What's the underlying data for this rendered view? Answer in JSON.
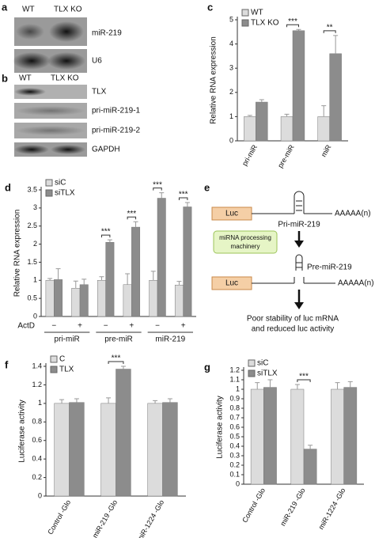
{
  "blot_a": {
    "panel": "a",
    "lanes": [
      "WT",
      "TLX KO"
    ],
    "rows": [
      "miR-219",
      "U6"
    ]
  },
  "blot_b": {
    "panel": "b",
    "lanes": [
      "WT",
      "TLX KO"
    ],
    "rows": [
      "TLX",
      "pri-miR-219-1",
      "pri-miR-219-2",
      "GAPDH"
    ]
  },
  "diagram": {
    "panel": "e",
    "luc": "Luc",
    "pri": "Pri-miR-219",
    "polya": "AAAAA(n)",
    "machinery": [
      "miRNA processing",
      "machinery"
    ],
    "pre": "Pre-miR-219",
    "luc2": "Luc",
    "polya2": "AAAAA(n)",
    "result": [
      "Poor stability of luc mRNA",
      "and reduced luc activity"
    ]
  },
  "chart_data": [
    {
      "type": "bar",
      "panel": "c",
      "ylabel": "Relative RNA expression",
      "categories": [
        "pri-miR",
        "pre-miR",
        "miR"
      ],
      "series": [
        {
          "name": "WT",
          "color": "#dcdcdc",
          "values": [
            1,
            1,
            1
          ],
          "errors": [
            0.05,
            0.1,
            0.45
          ]
        },
        {
          "name": "TLX KO",
          "color": "#8c8c8c",
          "values": [
            1.6,
            4.55,
            3.6
          ],
          "errors": [
            0.1,
            0.05,
            0.75
          ]
        }
      ],
      "significance": [
        null,
        "***",
        "**"
      ],
      "ylim": [
        0,
        5
      ],
      "yticks": [
        0,
        1,
        2,
        3,
        4,
        5
      ],
      "legend": "upper left"
    },
    {
      "type": "bar",
      "panel": "d",
      "ylabel": "Relative RNA expression",
      "categories": [
        "−",
        "+",
        "−",
        "+",
        "−",
        "+"
      ],
      "row_label": "ActD",
      "group_labels": [
        "pri-miR",
        "pre-miR",
        "miR-219"
      ],
      "series": [
        {
          "name": "siC",
          "color": "#dcdcdc",
          "values": [
            1.0,
            0.78,
            1.0,
            0.88,
            1.0,
            0.87
          ],
          "errors": [
            0.05,
            0.2,
            0.1,
            0.3,
            0.25,
            0.1
          ]
        },
        {
          "name": "siTLX",
          "color": "#8c8c8c",
          "values": [
            1.02,
            0.88,
            2.05,
            2.47,
            3.27,
            3.03
          ],
          "errors": [
            0.3,
            0.15,
            0.07,
            0.15,
            0.15,
            0.12
          ]
        }
      ],
      "significance": [
        null,
        null,
        "***",
        "***",
        "***",
        "***"
      ],
      "ylim": [
        0,
        3.5
      ],
      "yticks": [
        0,
        0.5,
        1,
        1.5,
        2,
        2.5,
        3,
        3.5
      ],
      "legend": "upper left"
    },
    {
      "type": "bar",
      "panel": "f",
      "ylabel": "Luciferase activity",
      "categories": [
        "Control -Glo",
        "miR-219 -Glo",
        "miR-1224 -Glo"
      ],
      "series": [
        {
          "name": "C",
          "color": "#dcdcdc",
          "values": [
            1,
            1,
            1
          ],
          "errors": [
            0.04,
            0.06,
            0.03
          ]
        },
        {
          "name": "TLX",
          "color": "#8c8c8c",
          "values": [
            1.01,
            1.37,
            1.01
          ],
          "errors": [
            0.04,
            0.03,
            0.04
          ]
        }
      ],
      "significance": [
        null,
        "***",
        null
      ],
      "ylim": [
        0,
        1.4
      ],
      "yticks": [
        0,
        0.2,
        0.4,
        0.6,
        0.8,
        1,
        1.2,
        1.4
      ],
      "legend": "upper left"
    },
    {
      "type": "bar",
      "panel": "g",
      "ylabel": "Luciferase activity",
      "categories": [
        "Control -Glo",
        "miR-219 -Glo",
        "miR-1224 -Glo"
      ],
      "series": [
        {
          "name": "siC",
          "color": "#dcdcdc",
          "values": [
            1,
            1,
            1
          ],
          "errors": [
            0.07,
            0.05,
            0.07
          ]
        },
        {
          "name": "siTLX",
          "color": "#8c8c8c",
          "values": [
            1.02,
            0.37,
            1.02
          ],
          "errors": [
            0.08,
            0.04,
            0.06
          ]
        }
      ],
      "significance": [
        null,
        "***",
        null
      ],
      "ylim": [
        0,
        1.2
      ],
      "yticks": [
        0,
        0.1,
        0.2,
        0.3,
        0.4,
        0.5,
        0.6,
        0.7,
        0.8,
        0.9,
        1,
        1.1,
        1.2
      ],
      "legend": "upper left"
    }
  ]
}
